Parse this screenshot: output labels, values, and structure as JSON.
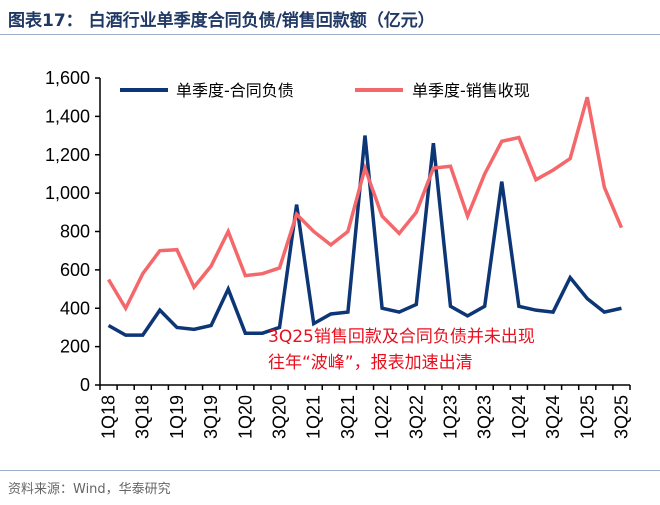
{
  "title": "图表17：  白酒行业单季度合同负债/销售回款额（亿元）",
  "source": "资料来源：Wind，华泰研究",
  "chart_data": {
    "type": "line",
    "title": "白酒行业单季度合同负债/销售回款额（亿元）",
    "categories": [
      "1Q18",
      "2Q18",
      "3Q18",
      "4Q18",
      "1Q19",
      "2Q19",
      "3Q19",
      "4Q19",
      "1Q20",
      "2Q20",
      "3Q20",
      "4Q20",
      "1Q21",
      "2Q21",
      "3Q21",
      "4Q21",
      "1Q22",
      "2Q22",
      "3Q22",
      "4Q22",
      "1Q23",
      "2Q23",
      "3Q23",
      "4Q23",
      "1Q24",
      "2Q24",
      "3Q24",
      "4Q24",
      "1Q25",
      "2Q25",
      "3Q25"
    ],
    "tick_labels": [
      "1Q18",
      "3Q18",
      "1Q19",
      "3Q19",
      "1Q20",
      "3Q20",
      "1Q21",
      "3Q21",
      "1Q22",
      "3Q22",
      "1Q23",
      "3Q23",
      "1Q24",
      "3Q24",
      "1Q25",
      "3Q25"
    ],
    "y_ticks": [
      "0",
      "200",
      "400",
      "600",
      "800",
      "1,000",
      "1,200",
      "1,400",
      "1,600"
    ],
    "ylim": [
      0,
      1600
    ],
    "grid": false,
    "legend_position": "top",
    "series": [
      {
        "name": "单季度-合同负债",
        "color": "#0c3675",
        "values": [
          310,
          260,
          260,
          390,
          300,
          290,
          310,
          500,
          270,
          270,
          300,
          940,
          320,
          370,
          380,
          1300,
          400,
          380,
          420,
          1260,
          410,
          360,
          410,
          1060,
          410,
          390,
          380,
          560,
          450,
          380,
          400
        ]
      },
      {
        "name": "单季度-销售收现",
        "color": "#f4676a",
        "values": [
          550,
          400,
          580,
          700,
          705,
          510,
          620,
          800,
          570,
          580,
          610,
          890,
          800,
          730,
          800,
          1130,
          880,
          790,
          900,
          1130,
          1140,
          880,
          1100,
          1270,
          1290,
          1070,
          1120,
          1180,
          1500,
          1030,
          820
        ]
      }
    ],
    "annotation": [
      "3Q25销售回款及合同负债并未出现",
      "往年“波峰”，报表加速出清"
    ]
  }
}
